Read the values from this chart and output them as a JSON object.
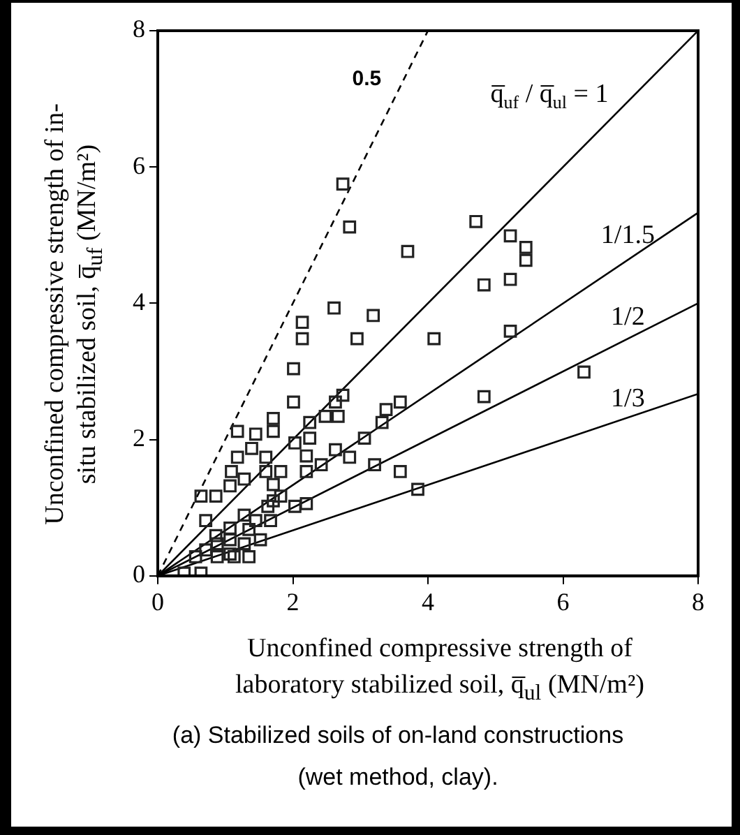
{
  "chart_data": {
    "type": "scatter",
    "xlabel": "Unconfined compressive strength of laboratory stabilized soil, q̅$_{ul}$ (MN/m²)",
    "ylabel": "Unconfined compressive strength of in-situ stabilized soil, q̅$_{uf}$ (MN/m²)",
    "annotations": [
      "(a) Stabilized soils of on-land constructions (wet method, clay)."
    ],
    "xlim": [
      0,
      8
    ],
    "ylim": [
      0,
      8
    ],
    "xticks": [
      0,
      2,
      4,
      6,
      8
    ],
    "yticks": [
      0,
      2,
      4,
      6,
      8
    ],
    "grid": false,
    "legend": false,
    "marker": "square",
    "series": [
      {
        "color": "#222222",
        "x": [
          2.74,
          2.84,
          3.7,
          4.71,
          5.22,
          5.45,
          5.45,
          4.83,
          5.22,
          4.09,
          5.22,
          4.83,
          6.31,
          3.85,
          2.61,
          3.19,
          2.95,
          2.14,
          2.14,
          2.01,
          2.01,
          2.74,
          2.63,
          3.59,
          3.38,
          3.32,
          3.06,
          2.84,
          3.21,
          3.59,
          2.48,
          2.67,
          2.25,
          2.25,
          2.63,
          2.42,
          2.2,
          2.2,
          2.2,
          2.03,
          2.03,
          1.71,
          1.71,
          1.45,
          1.18,
          1.39,
          1.18,
          1.09,
          1.6,
          1.6,
          1.82,
          1.71,
          1.82,
          1.63,
          1.67,
          1.45,
          1.28,
          1.07,
          0.86,
          0.64,
          0.71,
          1.07,
          1.28,
          1.35,
          1.52,
          1.28,
          1.07,
          1.07,
          0.88,
          0.71,
          1.13,
          1.35,
          0.88,
          0.56,
          0.64,
          0.39,
          0.86,
          1.71
        ],
        "values": [
          5.75,
          5.12,
          4.76,
          5.2,
          4.99,
          4.82,
          4.63,
          4.27,
          4.35,
          3.48,
          3.59,
          2.63,
          2.99,
          1.27,
          3.93,
          3.82,
          3.48,
          3.72,
          3.48,
          3.04,
          2.55,
          2.65,
          2.55,
          2.55,
          2.44,
          2.25,
          2.02,
          1.74,
          1.63,
          1.53,
          2.34,
          2.34,
          2.25,
          2.02,
          1.85,
          1.63,
          1.76,
          1.53,
          1.06,
          1.02,
          1.95,
          2.31,
          2.12,
          2.08,
          2.12,
          1.87,
          1.74,
          1.53,
          1.74,
          1.53,
          1.53,
          1.34,
          1.17,
          1.02,
          0.81,
          0.81,
          1.42,
          1.32,
          1.17,
          1.17,
          0.81,
          0.7,
          0.89,
          0.68,
          0.53,
          0.47,
          0.53,
          0.32,
          0.47,
          0.38,
          0.28,
          0.28,
          0.28,
          0.28,
          0.04,
          0.04,
          0.59,
          1.1
        ]
      },
      {
        "type": "line",
        "name": "0.5",
        "color": "#000000",
        "line_style": "dashed",
        "marker": "none",
        "x": [
          0,
          4
        ],
        "values": [
          0,
          8
        ]
      },
      {
        "type": "line",
        "name": "q̅$_{uf}$ / q̅$_{ul}$ = 1",
        "color": "#000000",
        "line_style": "solid",
        "marker": "none",
        "x": [
          0,
          8
        ],
        "values": [
          0,
          8
        ]
      },
      {
        "type": "line",
        "name": "1/1.5",
        "color": "#000000",
        "line_style": "solid",
        "marker": "none",
        "x": [
          0,
          8
        ],
        "values": [
          0,
          5.33
        ]
      },
      {
        "type": "line",
        "name": "1/2",
        "color": "#000000",
        "line_style": "solid",
        "marker": "none",
        "x": [
          0,
          8
        ],
        "values": [
          0,
          4
        ]
      },
      {
        "type": "line",
        "name": "1/3",
        "color": "#000000",
        "line_style": "solid",
        "marker": "none",
        "x": [
          0,
          8
        ],
        "values": [
          0,
          2.67
        ]
      }
    ]
  }
}
